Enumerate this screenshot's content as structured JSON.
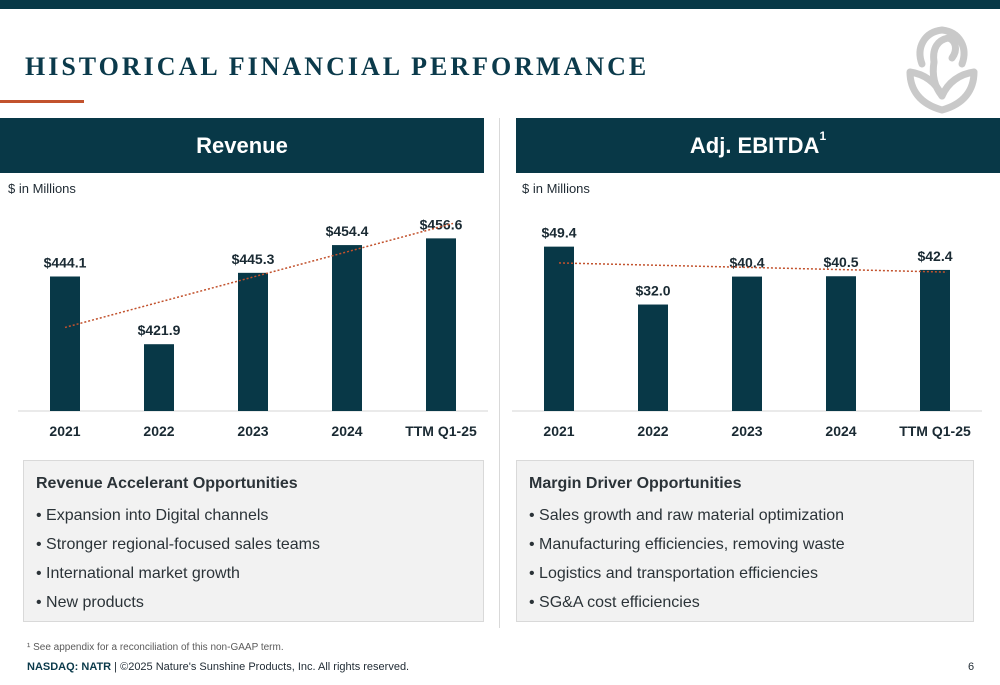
{
  "page": {
    "title": "HISTORICAL FINANCIAL PERFORMANCE",
    "footnote": "¹ See appendix for a reconciliation of this non-GAAP term.",
    "footer_ticker": "NASDAQ: NATR",
    "footer_copyright": " | ©2025 Nature's Sunshine Products, Inc. All rights reserved.",
    "page_number": "6",
    "colors": {
      "navy": "#083847",
      "accent": "#c2522d",
      "box_bg": "#f2f2f2"
    }
  },
  "revenue_panel": {
    "header": "Revenue",
    "units": "$ in Millions",
    "box_heading": "Revenue Accelerant Opportunities",
    "bullets": [
      "Expansion into Digital channels",
      "Stronger regional-focused sales teams",
      "International market growth",
      "New products"
    ]
  },
  "ebitda_panel": {
    "header": "Adj. EBITDA",
    "header_sup": "1",
    "units": "$ in Millions",
    "box_heading": "Margin Driver Opportunities",
    "bullets": [
      "Sales growth and raw material optimization",
      "Manufacturing efficiencies, removing waste",
      "Logistics and transportation efficiencies",
      "SG&A cost efficiencies"
    ]
  },
  "chart_data": [
    {
      "type": "bar",
      "title": "Revenue",
      "ylabel": "$ in Millions",
      "categories": [
        "2021",
        "2022",
        "2023",
        "2024",
        "TTM Q1-25"
      ],
      "values": [
        444.1,
        421.9,
        445.3,
        454.4,
        456.6
      ],
      "data_labels": [
        "$444.1",
        "$421.9",
        "$445.3",
        "$454.4",
        "$456.6"
      ],
      "ylim": [
        400,
        460
      ],
      "trendline": {
        "style": "dotted",
        "from": 427.4,
        "to": 458.4
      },
      "grid": false,
      "legend": "none"
    },
    {
      "type": "bar",
      "title": "Adj. EBITDA",
      "ylabel": "$ in Millions",
      "categories": [
        "2021",
        "2022",
        "2023",
        "2024",
        "TTM Q1-25"
      ],
      "values": [
        49.4,
        32.0,
        40.4,
        40.5,
        42.4
      ],
      "data_labels": [
        "$49.4",
        "$32.0",
        "$40.4",
        "$40.5",
        "$42.4"
      ],
      "ylim": [
        0,
        55
      ],
      "trendline": {
        "style": "dotted",
        "from": 44.5,
        "to": 42.0
      },
      "grid": false,
      "legend": "none"
    }
  ]
}
